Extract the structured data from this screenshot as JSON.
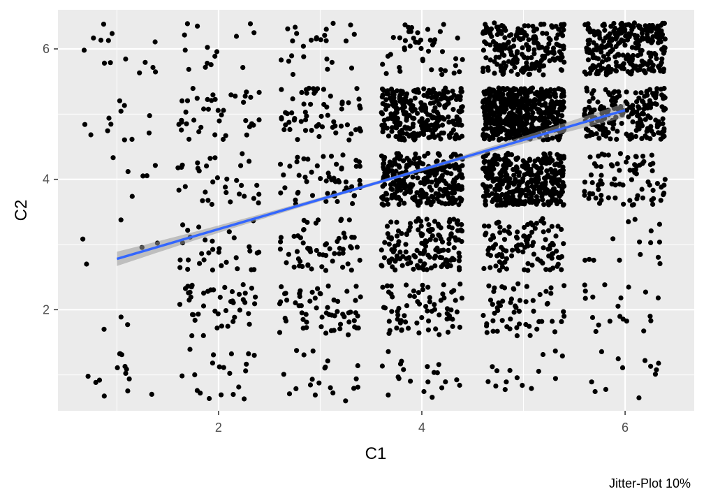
{
  "chart_data": {
    "type": "scatter",
    "title": "",
    "xlabel": "C1",
    "ylabel": "C2",
    "caption": "Jitter-Plot 10%",
    "xlim": [
      0.42,
      6.68
    ],
    "ylim": [
      0.45,
      6.6
    ],
    "x_ticks": [
      2,
      4,
      6
    ],
    "x_tick_labels": [
      "2",
      "4",
      "6"
    ],
    "y_ticks": [
      2,
      4,
      6
    ],
    "y_tick_labels": [
      "2",
      "4",
      "6"
    ],
    "grid": true,
    "jitter": "jittered ordinal data (integer levels 1-6 on both axes), jitter width about ±0.4",
    "cell_counts": {
      "x_levels": [
        1,
        2,
        3,
        4,
        5,
        6
      ],
      "y_levels": [
        1,
        2,
        3,
        4,
        5,
        6
      ],
      "counts_by_x_then_y": [
        [
          14,
          3,
          5,
          6,
          12,
          14
        ],
        [
          20,
          45,
          32,
          32,
          40,
          15
        ],
        [
          20,
          60,
          60,
          55,
          60,
          25
        ],
        [
          20,
          70,
          150,
          280,
          280,
          45
        ],
        [
          15,
          60,
          110,
          380,
          550,
          210
        ],
        [
          12,
          20,
          15,
          80,
          200,
          260
        ]
      ]
    },
    "fit_line": {
      "method": "lm",
      "x": [
        1,
        6
      ],
      "y": [
        2.78,
        5.06
      ],
      "color": "#3366FF",
      "band_color": "#999999"
    },
    "colors": {
      "panel_background": "#EBEBEB",
      "grid_line": "#FFFFFF",
      "points": "#000000"
    }
  }
}
